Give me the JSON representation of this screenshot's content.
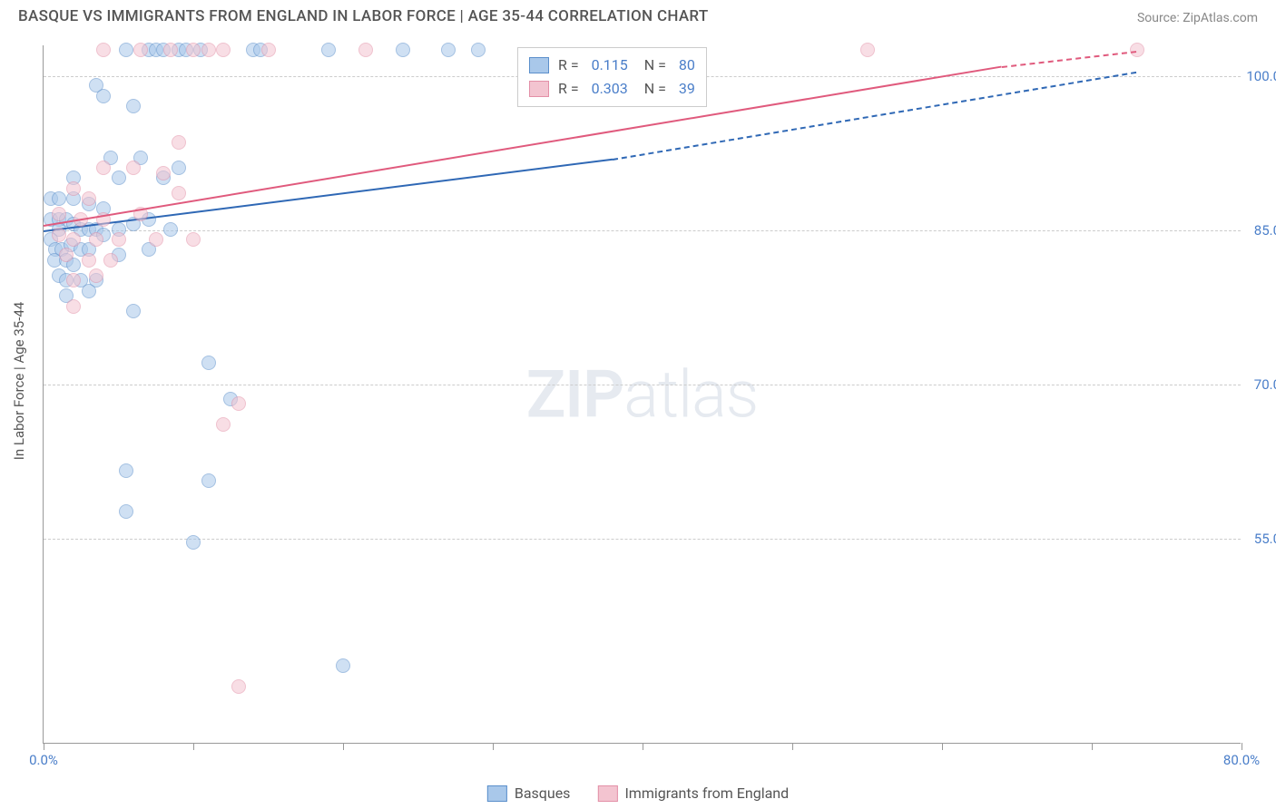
{
  "title": "BASQUE VS IMMIGRANTS FROM ENGLAND IN LABOR FORCE | AGE 35-44 CORRELATION CHART",
  "source": "Source: ZipAtlas.com",
  "watermark": {
    "zip": "ZIP",
    "atlas": "atlas"
  },
  "chart": {
    "type": "scatter",
    "ylabel": "In Labor Force | Age 35-44",
    "xlim": [
      0,
      80
    ],
    "ylim": [
      35,
      103
    ],
    "yticks": [
      {
        "v": 55.0,
        "label": "55.0%"
      },
      {
        "v": 70.0,
        "label": "70.0%"
      },
      {
        "v": 85.0,
        "label": "85.0%"
      },
      {
        "v": 100.0,
        "label": "100.0%"
      }
    ],
    "xticks_major": [
      0,
      10,
      20,
      30,
      40,
      50,
      60,
      70,
      80
    ],
    "xticks_labeled": [
      {
        "v": 0,
        "label": "0.0%"
      },
      {
        "v": 80,
        "label": "80.0%"
      }
    ],
    "background_color": "#ffffff",
    "grid_color": "#cccccc",
    "axis_color": "#999999",
    "label_color": "#4a7ec9",
    "marker_radius": 8,
    "marker_opacity": 0.55,
    "series": [
      {
        "name": "Basques",
        "color_fill": "#a9c8ea",
        "color_stroke": "#5b8fcb",
        "line_color": "#2f68b5",
        "R": "0.115",
        "N": "80",
        "trend": {
          "x1": 0,
          "y1": 85,
          "x2": 38,
          "y2": 92,
          "dash_after_x": 38,
          "x3": 73,
          "y3": 100.5
        },
        "points": [
          {
            "x": 5.5,
            "y": 102.5
          },
          {
            "x": 7,
            "y": 102.5
          },
          {
            "x": 7.5,
            "y": 102.5
          },
          {
            "x": 8,
            "y": 102.5
          },
          {
            "x": 9,
            "y": 102.5
          },
          {
            "x": 9.5,
            "y": 102.5
          },
          {
            "x": 10.5,
            "y": 102.5
          },
          {
            "x": 14,
            "y": 102.5
          },
          {
            "x": 14.5,
            "y": 102.5
          },
          {
            "x": 19,
            "y": 102.5
          },
          {
            "x": 24,
            "y": 102.5
          },
          {
            "x": 27,
            "y": 102.5
          },
          {
            "x": 29,
            "y": 102.5
          },
          {
            "x": 3.5,
            "y": 99
          },
          {
            "x": 4,
            "y": 98
          },
          {
            "x": 6,
            "y": 97
          },
          {
            "x": 4.5,
            "y": 92
          },
          {
            "x": 6.5,
            "y": 92
          },
          {
            "x": 9,
            "y": 91
          },
          {
            "x": 2,
            "y": 90
          },
          {
            "x": 5,
            "y": 90
          },
          {
            "x": 8,
            "y": 90
          },
          {
            "x": 0.5,
            "y": 88
          },
          {
            "x": 1,
            "y": 88
          },
          {
            "x": 2,
            "y": 88
          },
          {
            "x": 3,
            "y": 87.5
          },
          {
            "x": 4,
            "y": 87
          },
          {
            "x": 0.5,
            "y": 86
          },
          {
            "x": 1,
            "y": 86
          },
          {
            "x": 1.5,
            "y": 86
          },
          {
            "x": 2,
            "y": 85.5
          },
          {
            "x": 2.5,
            "y": 85
          },
          {
            "x": 3,
            "y": 85
          },
          {
            "x": 3.5,
            "y": 85
          },
          {
            "x": 1,
            "y": 85
          },
          {
            "x": 0.5,
            "y": 84
          },
          {
            "x": 4,
            "y": 84.5
          },
          {
            "x": 5,
            "y": 85
          },
          {
            "x": 6,
            "y": 85.5
          },
          {
            "x": 7,
            "y": 86
          },
          {
            "x": 8.5,
            "y": 85
          },
          {
            "x": 0.8,
            "y": 83
          },
          {
            "x": 1.2,
            "y": 83
          },
          {
            "x": 1.8,
            "y": 83.5
          },
          {
            "x": 2.5,
            "y": 83
          },
          {
            "x": 3,
            "y": 83
          },
          {
            "x": 0.7,
            "y": 82
          },
          {
            "x": 1.5,
            "y": 82
          },
          {
            "x": 2,
            "y": 81.5
          },
          {
            "x": 5,
            "y": 82.5
          },
          {
            "x": 7,
            "y": 83
          },
          {
            "x": 1,
            "y": 80.5
          },
          {
            "x": 1.5,
            "y": 80
          },
          {
            "x": 2.5,
            "y": 80
          },
          {
            "x": 3.5,
            "y": 80
          },
          {
            "x": 1.5,
            "y": 78.5
          },
          {
            "x": 3,
            "y": 79
          },
          {
            "x": 6,
            "y": 77
          },
          {
            "x": 11,
            "y": 72
          },
          {
            "x": 12.5,
            "y": 68.5
          },
          {
            "x": 5.5,
            "y": 61.5
          },
          {
            "x": 11,
            "y": 60.5
          },
          {
            "x": 5.5,
            "y": 57.5
          },
          {
            "x": 10,
            "y": 54.5
          },
          {
            "x": 20,
            "y": 42.5
          }
        ]
      },
      {
        "name": "Immigrants from England",
        "color_fill": "#f3c4d0",
        "color_stroke": "#e390a7",
        "line_color": "#e05a7d",
        "R": "0.303",
        "N": "39",
        "trend": {
          "x1": 0,
          "y1": 85.5,
          "x2": 64,
          "y2": 101,
          "dash_after_x": 64,
          "x3": 73,
          "y3": 102.5
        },
        "points": [
          {
            "x": 4,
            "y": 102.5
          },
          {
            "x": 6.5,
            "y": 102.5
          },
          {
            "x": 8.5,
            "y": 102.5
          },
          {
            "x": 10,
            "y": 102.5
          },
          {
            "x": 11,
            "y": 102.5
          },
          {
            "x": 12,
            "y": 102.5
          },
          {
            "x": 15,
            "y": 102.5
          },
          {
            "x": 21.5,
            "y": 102.5
          },
          {
            "x": 55,
            "y": 102.5
          },
          {
            "x": 73,
            "y": 102.5
          },
          {
            "x": 9,
            "y": 93.5
          },
          {
            "x": 4,
            "y": 91
          },
          {
            "x": 6,
            "y": 91
          },
          {
            "x": 8,
            "y": 90.5
          },
          {
            "x": 2,
            "y": 89
          },
          {
            "x": 3,
            "y": 88
          },
          {
            "x": 9,
            "y": 88.5
          },
          {
            "x": 1,
            "y": 86.5
          },
          {
            "x": 2.5,
            "y": 86
          },
          {
            "x": 4,
            "y": 86
          },
          {
            "x": 6.5,
            "y": 86.5
          },
          {
            "x": 1,
            "y": 84.5
          },
          {
            "x": 2,
            "y": 84
          },
          {
            "x": 3.5,
            "y": 84
          },
          {
            "x": 5,
            "y": 84
          },
          {
            "x": 7.5,
            "y": 84
          },
          {
            "x": 10,
            "y": 84
          },
          {
            "x": 1.5,
            "y": 82.5
          },
          {
            "x": 3,
            "y": 82
          },
          {
            "x": 4.5,
            "y": 82
          },
          {
            "x": 2,
            "y": 80
          },
          {
            "x": 3.5,
            "y": 80.5
          },
          {
            "x": 2,
            "y": 77.5
          },
          {
            "x": 13,
            "y": 68
          },
          {
            "x": 12,
            "y": 66
          },
          {
            "x": 13,
            "y": 40.5
          }
        ]
      }
    ]
  },
  "legend_bottom": [
    {
      "label": "Basques",
      "fill": "#a9c8ea",
      "stroke": "#5b8fcb"
    },
    {
      "label": "Immigrants from England",
      "fill": "#f3c4d0",
      "stroke": "#e390a7"
    }
  ]
}
